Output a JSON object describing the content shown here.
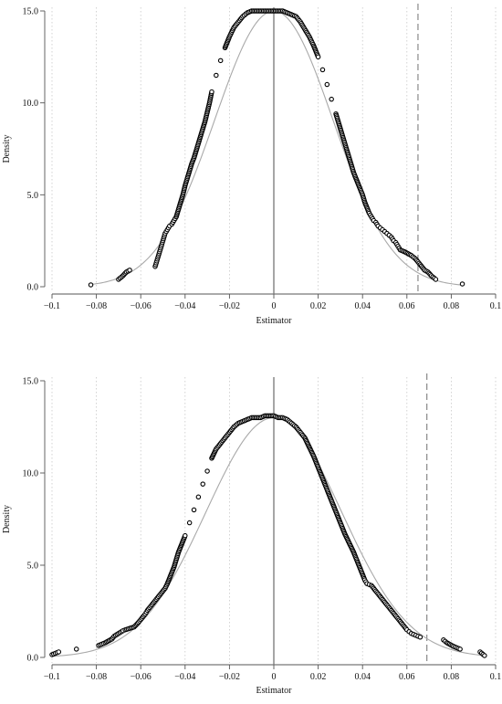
{
  "chart_data": [
    {
      "type": "scatter",
      "panel": "top",
      "xlabel": "Estimator",
      "ylabel": "Density",
      "xlim": [
        -0.1,
        0.1
      ],
      "ylim": [
        0,
        15
      ],
      "xticks": [
        -0.1,
        -0.08,
        -0.06,
        -0.04,
        -0.02,
        0,
        0.02,
        0.04,
        0.06,
        0.08,
        0.1
      ],
      "xtick_labels": [
        "−0.1",
        "−0.08",
        "−0.06",
        "−0.04",
        "−0.02",
        "0",
        "0.02",
        "0.04",
        "0.06",
        "0.08",
        "0.1"
      ],
      "yticks": [
        0,
        5,
        10,
        15
      ],
      "ytick_labels": [
        "0.0",
        "5.0",
        "10.0",
        "15.0"
      ],
      "grid": "vertical dotted",
      "vertical_lines": {
        "zero": 0,
        "dashed": 0.065
      },
      "reference_curve": {
        "kind": "normal density",
        "mean": 0,
        "sd": 0.0266,
        "peak": 15.0
      },
      "series": [
        {
          "marker": "open circle",
          "x": [
            -0.0825,
            -0.07,
            -0.068,
            -0.0665,
            -0.065,
            -0.0535,
            -0.053,
            -0.0525,
            -0.052,
            -0.0515,
            -0.051,
            -0.0505,
            -0.05,
            -0.0495,
            -0.049,
            -0.048,
            -0.0475,
            -0.047,
            -0.046,
            -0.045,
            -0.044,
            -0.043,
            -0.042,
            -0.041,
            -0.04,
            -0.039,
            -0.038,
            -0.037,
            -0.036,
            -0.035,
            -0.034,
            -0.033,
            -0.032,
            -0.031,
            -0.03,
            -0.029,
            -0.028,
            -0.026,
            -0.024,
            -0.022,
            -0.02,
            -0.018,
            -0.016,
            -0.014,
            -0.012,
            -0.01,
            -0.008,
            -0.006,
            -0.004,
            -0.002,
            0.0,
            0.002,
            0.004,
            0.006,
            0.008,
            0.01,
            0.012,
            0.014,
            0.016,
            0.018,
            0.02,
            0.022,
            0.024,
            0.026,
            0.028,
            0.029,
            0.03,
            0.031,
            0.032,
            0.033,
            0.034,
            0.035,
            0.036,
            0.037,
            0.038,
            0.039,
            0.04,
            0.041,
            0.042,
            0.043,
            0.044,
            0.045,
            0.046,
            0.047,
            0.048,
            0.049,
            0.05,
            0.051,
            0.052,
            0.053,
            0.054,
            0.055,
            0.056,
            0.057,
            0.059,
            0.062,
            0.064,
            0.066,
            0.068,
            0.0695,
            0.071,
            0.073,
            0.085
          ],
          "y": [
            0.1,
            0.4,
            0.6,
            0.8,
            0.9,
            1.1,
            1.3,
            1.5,
            1.7,
            1.9,
            2.1,
            2.3,
            2.5,
            2.7,
            2.9,
            3.1,
            3.2,
            3.3,
            3.4,
            3.6,
            3.8,
            4.2,
            4.6,
            5.0,
            5.5,
            5.9,
            6.3,
            6.7,
            7.0,
            7.4,
            7.8,
            8.2,
            8.6,
            9.0,
            9.5,
            10.0,
            10.6,
            11.5,
            12.3,
            13.0,
            13.6,
            14.1,
            14.4,
            14.7,
            14.9,
            15.0,
            15.0,
            15.0,
            15.0,
            15.0,
            15.0,
            15.0,
            15.0,
            14.9,
            14.8,
            14.7,
            14.4,
            14.0,
            13.6,
            13.1,
            12.5,
            11.8,
            11.0,
            10.2,
            9.4,
            9.0,
            8.6,
            8.2,
            7.8,
            7.4,
            7.0,
            6.6,
            6.2,
            5.9,
            5.6,
            5.3,
            5.0,
            4.6,
            4.3,
            4.0,
            3.8,
            3.6,
            3.5,
            3.3,
            3.2,
            3.1,
            3.0,
            2.9,
            2.8,
            2.7,
            2.5,
            2.4,
            2.2,
            2.0,
            1.9,
            1.7,
            1.5,
            1.2,
            0.9,
            0.8,
            0.6,
            0.4,
            0.15
          ]
        }
      ]
    },
    {
      "type": "scatter",
      "panel": "bottom",
      "xlabel": "Estimator",
      "ylabel": "Density",
      "xlim": [
        -0.1,
        0.1
      ],
      "ylim": [
        0,
        15
      ],
      "xticks": [
        -0.1,
        -0.08,
        -0.06,
        -0.04,
        -0.02,
        0,
        0.02,
        0.04,
        0.06,
        0.08,
        0.1
      ],
      "xtick_labels": [
        "−0.1",
        "−0.08",
        "−0.06",
        "−0.04",
        "−0.02",
        "0",
        "0.02",
        "0.04",
        "0.06",
        "0.08",
        "0.1"
      ],
      "yticks": [
        0,
        5,
        10,
        15
      ],
      "ytick_labels": [
        "0.0",
        "5.0",
        "10.0",
        "15.0"
      ],
      "grid": "vertical dotted",
      "vertical_lines": {
        "zero": 0,
        "dashed": 0.069
      },
      "reference_curve": {
        "kind": "normal density",
        "mean": 0,
        "sd": 0.0306,
        "peak": 13.0
      },
      "series": [
        {
          "marker": "open circle",
          "x": [
            -0.1,
            -0.097,
            -0.089,
            -0.079,
            -0.076,
            -0.073,
            -0.072,
            -0.07,
            -0.068,
            -0.067,
            -0.063,
            -0.061,
            -0.06,
            -0.059,
            -0.058,
            -0.057,
            -0.056,
            -0.055,
            -0.054,
            -0.053,
            -0.052,
            -0.051,
            -0.05,
            -0.049,
            -0.048,
            -0.047,
            -0.046,
            -0.045,
            -0.044,
            -0.043,
            -0.042,
            -0.041,
            -0.04,
            -0.038,
            -0.036,
            -0.034,
            -0.032,
            -0.03,
            -0.028,
            -0.026,
            -0.024,
            -0.022,
            -0.02,
            -0.018,
            -0.016,
            -0.014,
            -0.012,
            -0.01,
            -0.008,
            -0.006,
            -0.004,
            -0.002,
            0.0,
            0.002,
            0.004,
            0.006,
            0.008,
            0.01,
            0.012,
            0.014,
            0.016,
            0.018,
            0.02,
            0.022,
            0.024,
            0.026,
            0.028,
            0.03,
            0.032,
            0.034,
            0.036,
            0.037,
            0.038,
            0.039,
            0.04,
            0.041,
            0.042,
            0.043,
            0.044,
            0.046,
            0.048,
            0.05,
            0.052,
            0.054,
            0.056,
            0.058,
            0.06,
            0.061,
            0.062,
            0.063,
            0.064,
            0.065,
            0.066,
            0.0765,
            0.078,
            0.081,
            0.084,
            0.093,
            0.095
          ],
          "y": [
            0.15,
            0.3,
            0.45,
            0.65,
            0.8,
            1.0,
            1.15,
            1.3,
            1.45,
            1.5,
            1.65,
            1.9,
            2.05,
            2.2,
            2.35,
            2.55,
            2.7,
            2.85,
            3.0,
            3.15,
            3.3,
            3.45,
            3.6,
            3.75,
            4.0,
            4.3,
            4.6,
            4.9,
            5.3,
            5.7,
            6.0,
            6.3,
            6.6,
            7.3,
            8.0,
            8.7,
            9.4,
            10.1,
            10.8,
            11.3,
            11.6,
            11.9,
            12.2,
            12.5,
            12.7,
            12.8,
            12.9,
            13.0,
            13.0,
            13.0,
            13.1,
            13.1,
            13.1,
            13.0,
            13.0,
            12.9,
            12.7,
            12.5,
            12.2,
            11.9,
            11.4,
            10.9,
            10.3,
            9.7,
            9.1,
            8.5,
            7.9,
            7.3,
            6.7,
            6.2,
            5.7,
            5.4,
            5.1,
            4.8,
            4.5,
            4.2,
            4.0,
            3.95,
            3.9,
            3.6,
            3.3,
            3.0,
            2.7,
            2.4,
            2.1,
            1.8,
            1.5,
            1.4,
            1.3,
            1.25,
            1.2,
            1.15,
            1.1,
            0.95,
            0.8,
            0.6,
            0.45,
            0.3,
            0.1
          ]
        }
      ]
    }
  ]
}
